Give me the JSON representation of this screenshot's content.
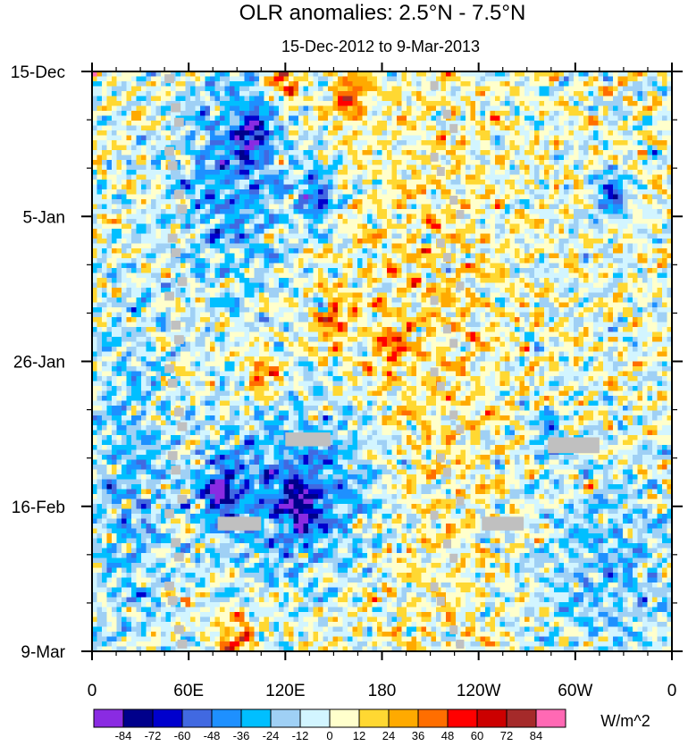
{
  "chart_data": {
    "type": "heatmap",
    "title": "OLR anomalies: 2.5°N - 7.5°N",
    "subtitle": "15-Dec-2012 to 9-Mar-2013",
    "xlabel": "",
    "ylabel": "",
    "x_range_deg_east": [
      0,
      360
    ],
    "x_ticks": [
      {
        "lon": 0,
        "label": "0"
      },
      {
        "lon": 60,
        "label": "60E"
      },
      {
        "lon": 120,
        "label": "120E"
      },
      {
        "lon": 180,
        "label": "180"
      },
      {
        "lon": 240,
        "label": "120W"
      },
      {
        "lon": 300,
        "label": "60W"
      },
      {
        "lon": 360,
        "label": "0"
      }
    ],
    "y_range_days": [
      0,
      84
    ],
    "y_ticks": [
      {
        "day": 0,
        "label": "15-Dec"
      },
      {
        "day": 21,
        "label": "5-Jan"
      },
      {
        "day": 42,
        "label": "26-Jan"
      },
      {
        "day": 63,
        "label": "16-Feb"
      },
      {
        "day": 84,
        "label": "9-Mar"
      }
    ],
    "colorbar": {
      "units": "W/m^2",
      "levels": [
        -84,
        -72,
        -60,
        -48,
        -36,
        -24,
        -12,
        0,
        12,
        24,
        36,
        48,
        60,
        72,
        84
      ],
      "labels": [
        "-84",
        "-72",
        "-60",
        "-48",
        "-36",
        "-24",
        "-12",
        "0",
        "12",
        "24",
        "36",
        "48",
        "60",
        "72",
        "84"
      ],
      "colors": [
        "#8A2BE2",
        "#00008B",
        "#0000CD",
        "#4169E1",
        "#1E90FF",
        "#00BFFF",
        "#9FD0F5",
        "#D2F5FF",
        "#FFFFCC",
        "#FFD832",
        "#FFAA00",
        "#FF6E00",
        "#FF0000",
        "#CC0000",
        "#A52A2A",
        "#FF69B4"
      ]
    },
    "missing_color": "#C0C0C0",
    "features": [
      {
        "type": "band",
        "sign": "negative",
        "lon": [
          55,
          120
        ],
        "days": [
          0,
          30
        ],
        "peak": -72
      },
      {
        "type": "band",
        "sign": "negative",
        "lon": [
          75,
          175
        ],
        "days": [
          50,
          72
        ],
        "peak": -84
      },
      {
        "type": "band",
        "sign": "negative",
        "lon": [
          0,
          45
        ],
        "days": [
          35,
          84
        ],
        "peak": -48
      },
      {
        "type": "band",
        "sign": "negative",
        "lon": [
          280,
          360
        ],
        "days": [
          60,
          84
        ],
        "peak": -48
      },
      {
        "type": "band",
        "sign": "positive",
        "lon": [
          170,
          250
        ],
        "days": [
          0,
          84
        ],
        "peak": 24
      },
      {
        "type": "spot",
        "sign": "positive",
        "lon": 160,
        "day": 4,
        "value": 60
      },
      {
        "type": "spot",
        "sign": "positive",
        "lon": 120,
        "day": 1,
        "value": 60
      },
      {
        "type": "spot",
        "sign": "positive",
        "lon": 150,
        "day": 36,
        "value": 48
      },
      {
        "type": "spot",
        "sign": "positive",
        "lon": 105,
        "day": 44,
        "value": 48
      },
      {
        "type": "spot",
        "sign": "positive",
        "lon": 185,
        "day": 40,
        "value": 36
      },
      {
        "type": "spot",
        "sign": "positive",
        "lon": 90,
        "day": 82,
        "value": 48
      },
      {
        "type": "spot",
        "sign": "negative",
        "lon": 140,
        "day": 18,
        "value": -72
      },
      {
        "type": "spot",
        "sign": "negative",
        "lon": 100,
        "day": 9,
        "value": -60
      },
      {
        "type": "spot",
        "sign": "negative",
        "lon": 80,
        "day": 61,
        "value": -84
      },
      {
        "type": "spot",
        "sign": "negative",
        "lon": 130,
        "day": 63,
        "value": -60
      },
      {
        "type": "spot",
        "sign": "negative",
        "lon": 285,
        "day": 53,
        "value": -48
      },
      {
        "type": "spot",
        "sign": "negative",
        "lon": 322,
        "day": 18,
        "value": -60
      }
    ],
    "missing_regions": [
      {
        "type": "diagonal",
        "lon_start": 45,
        "lon_end": 55,
        "day_start": 0,
        "day_end": 84,
        "width_deg": 6
      },
      {
        "type": "diagonal",
        "lon_start": 210,
        "lon_end": 230,
        "day_start": 1,
        "day_end": 84,
        "width_deg": 5
      },
      {
        "type": "box",
        "lon": [
          120,
          148
        ],
        "days": [
          52.3,
          54.3
        ]
      },
      {
        "type": "box",
        "lon": [
          78,
          105
        ],
        "days": [
          64.5,
          66.5
        ]
      },
      {
        "type": "box",
        "lon": [
          242,
          268
        ],
        "days": [
          64.5,
          66.5
        ]
      },
      {
        "type": "box",
        "lon": [
          283,
          315
        ],
        "days": [
          53,
          55.3
        ]
      }
    ]
  }
}
